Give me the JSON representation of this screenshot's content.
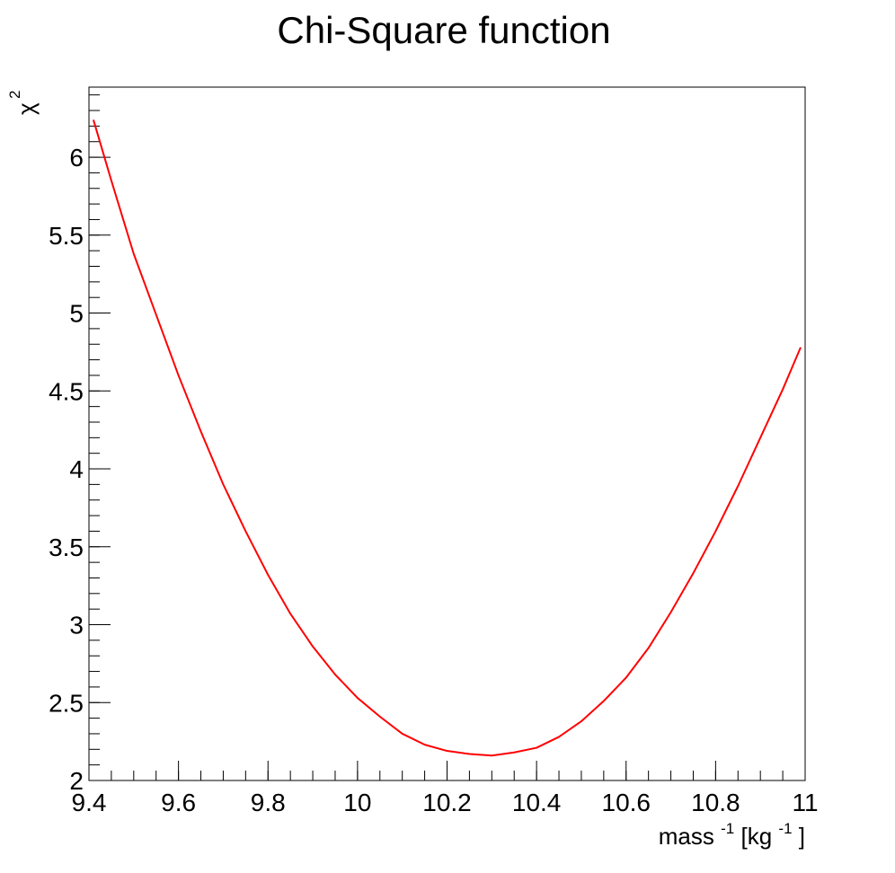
{
  "chart_data": {
    "type": "line",
    "title": "Chi-Square function",
    "xlabel": {
      "base": "mass",
      "base_sup": "-1",
      "unit_open": " [kg",
      "unit_sup": "-1",
      "unit_close": "]"
    },
    "ylabel": {
      "base": "χ",
      "sup": "2"
    },
    "xlim": [
      9.4,
      11.0
    ],
    "ylim": [
      2.0,
      6.45
    ],
    "x_ticks": [
      9.4,
      9.6,
      9.8,
      10.0,
      10.2,
      10.4,
      10.6,
      10.8,
      11.0
    ],
    "x_tick_labels": [
      "9.4",
      "9.6",
      "9.8",
      "10",
      "10.2",
      "10.4",
      "10.6",
      "10.8",
      "11"
    ],
    "y_ticks": [
      2.0,
      2.5,
      3.0,
      3.5,
      4.0,
      4.5,
      5.0,
      5.5,
      6.0
    ],
    "y_tick_labels": [
      "2",
      "2.5",
      "3",
      "3.5",
      "4",
      "4.5",
      "5",
      "5.5",
      "6"
    ],
    "grid": false,
    "series": [
      {
        "color": "#ff0000",
        "x": [
          9.41,
          9.45,
          9.5,
          9.55,
          9.6,
          9.65,
          9.7,
          9.75,
          9.8,
          9.85,
          9.9,
          9.95,
          10.0,
          10.05,
          10.1,
          10.15,
          10.2,
          10.25,
          10.3,
          10.35,
          10.4,
          10.45,
          10.5,
          10.55,
          10.6,
          10.65,
          10.7,
          10.75,
          10.8,
          10.85,
          10.9,
          10.95,
          10.99
        ],
        "y": [
          6.24,
          5.85,
          5.38,
          4.99,
          4.6,
          4.24,
          3.9,
          3.6,
          3.32,
          3.07,
          2.86,
          2.68,
          2.53,
          2.41,
          2.3,
          2.23,
          2.19,
          2.17,
          2.16,
          2.18,
          2.21,
          2.28,
          2.38,
          2.51,
          2.66,
          2.85,
          3.08,
          3.33,
          3.6,
          3.89,
          4.2,
          4.51,
          4.78
        ]
      }
    ]
  }
}
